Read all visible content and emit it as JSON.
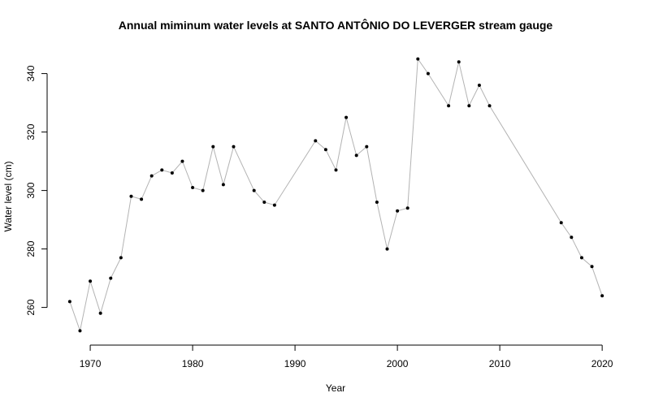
{
  "chart_data": {
    "type": "line",
    "title": "Annual miminum water levels at SANTO ANTÔNIO DO LEVERGER stream gauge",
    "xlabel": "Year",
    "ylabel": "Water level (cm)",
    "xlim": [
      1966.9,
      2021.1
    ],
    "ylim": [
      248.5,
      348.5
    ],
    "x_ticks": [
      1970,
      1980,
      1990,
      2000,
      2010,
      2020
    ],
    "y_ticks": [
      260,
      280,
      300,
      320,
      340
    ],
    "grid": false,
    "legend": "none",
    "line_color": "#b3b3b3",
    "point_color": "#000000",
    "series": [
      {
        "x": [
          1968,
          1969,
          1970,
          1971,
          1972,
          1973,
          1974,
          1975,
          1976,
          1977,
          1978,
          1979,
          1980,
          1981,
          1982,
          1983,
          1984,
          1986,
          1987,
          1988,
          1992,
          1993,
          1994,
          1995,
          1996,
          1997,
          1998,
          1999,
          2000,
          2001,
          2002,
          2003,
          2005,
          2006,
          2007,
          2008,
          2009,
          2016,
          2017,
          2018,
          2019,
          2020
        ],
        "y": [
          262,
          252,
          269,
          258,
          270,
          277,
          298,
          297,
          305,
          307,
          306,
          310,
          301,
          300,
          315,
          302,
          315,
          300,
          296,
          295,
          317,
          314,
          307,
          325,
          312,
          315,
          296,
          280,
          293,
          294,
          345,
          340,
          329,
          344,
          329,
          336,
          329,
          289,
          284,
          277,
          274,
          264
        ]
      }
    ]
  }
}
